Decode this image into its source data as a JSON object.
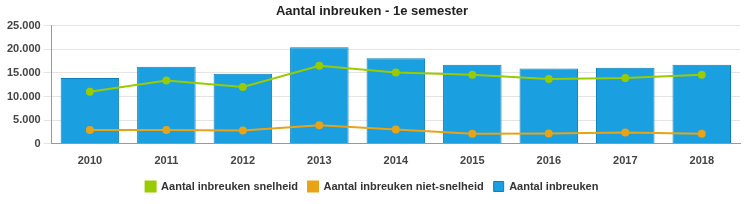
{
  "chart_data": {
    "type": "bar",
    "title": "Aantal inbreuken - 1e semester",
    "categories": [
      "2010",
      "2011",
      "2012",
      "2013",
      "2014",
      "2015",
      "2016",
      "2017",
      "2018"
    ],
    "series": [
      {
        "name": "Aantal inbreuken",
        "type": "bar",
        "color": "#1a9fe0",
        "values": [
          13900,
          16300,
          14800,
          20400,
          18100,
          16700,
          15900,
          16100,
          16700
        ]
      },
      {
        "name": "Aantal inbreuken snelheid",
        "type": "line",
        "color": "#99cc00",
        "marker": "circle",
        "line_style": "solid",
        "values": [
          11000,
          13400,
          12000,
          16500,
          15100,
          14600,
          13700,
          13900,
          14600
        ]
      },
      {
        "name": "Aantal inbreuken niet-snelheid",
        "type": "line",
        "color": "#e8a317",
        "marker": "circle",
        "line_style": "solid",
        "values": [
          2900,
          2900,
          2800,
          3900,
          3000,
          2100,
          2200,
          2400,
          2100
        ]
      }
    ],
    "ylim": [
      0,
      25000
    ],
    "yticks": [
      0,
      {
        "value": 5000,
        "label": "5.000"
      },
      {
        "value": 10000,
        "label": "10.000"
      },
      {
        "value": 15000,
        "label": "15.000"
      },
      {
        "value": 20000,
        "label": "20.000"
      },
      {
        "value": 25000,
        "label": "25.000"
      }
    ],
    "grid": true,
    "legend": "bottom"
  }
}
